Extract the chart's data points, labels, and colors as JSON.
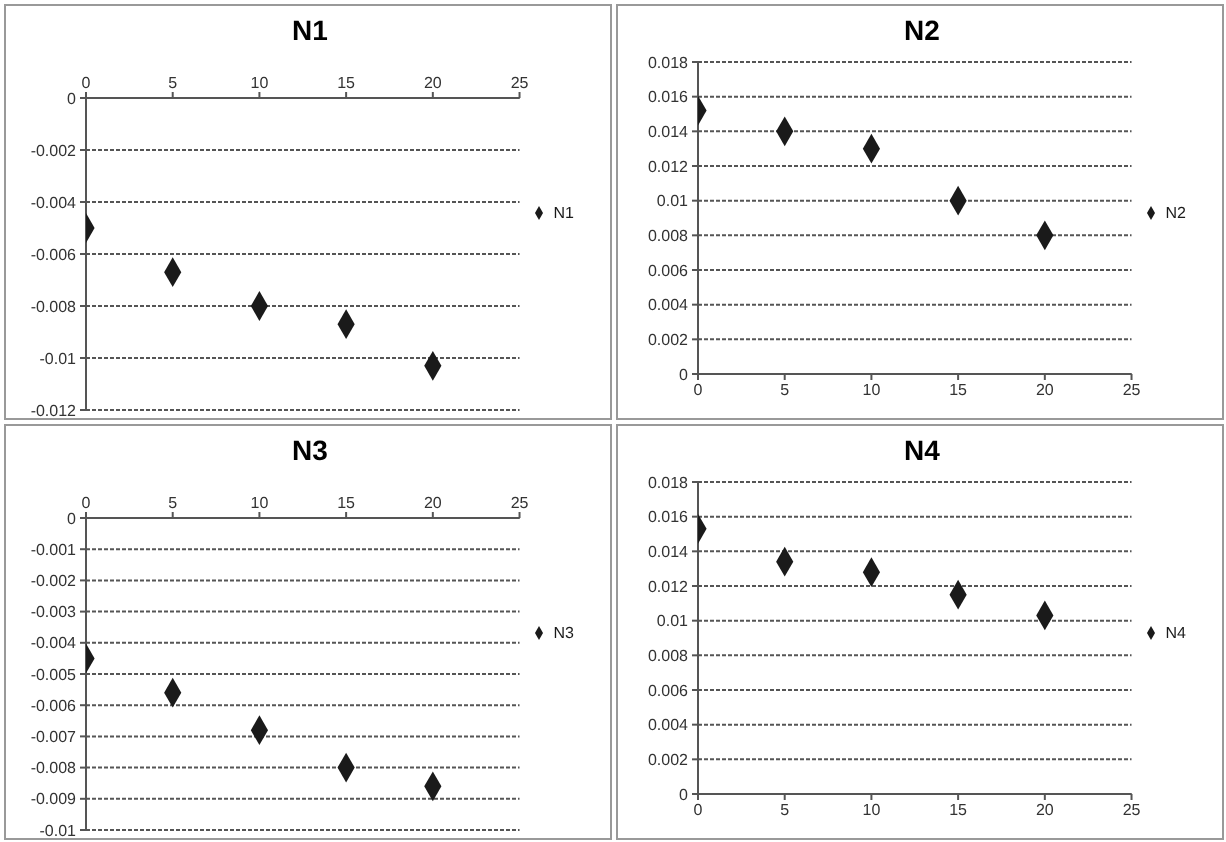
{
  "chart_data": [
    {
      "type": "scatter",
      "title": "N1",
      "x": [
        0,
        5,
        10,
        15,
        20
      ],
      "series": [
        {
          "name": "N1",
          "color": "#1a1a1a",
          "values": [
            -0.005,
            -0.0067,
            -0.008,
            -0.0087,
            -0.0103
          ]
        }
      ],
      "xlim": [
        0,
        25
      ],
      "xticks": [
        0,
        5,
        10,
        15,
        20,
        25
      ],
      "ylim": [
        -0.012,
        0
      ],
      "yticks": [
        -0.012,
        -0.01,
        -0.008,
        -0.006,
        -0.004,
        -0.002,
        0
      ],
      "grid": "y",
      "legend": "right",
      "marker": "diamond"
    },
    {
      "type": "scatter",
      "title": "N2",
      "x": [
        0,
        5,
        10,
        15,
        20
      ],
      "series": [
        {
          "name": "N2",
          "color": "#1a1a1a",
          "values": [
            0.0152,
            0.014,
            0.013,
            0.01,
            0.008
          ]
        }
      ],
      "xlim": [
        0,
        25
      ],
      "xticks": [
        0,
        5,
        10,
        15,
        20,
        25
      ],
      "ylim": [
        0,
        0.018
      ],
      "yticks": [
        0,
        0.002,
        0.004,
        0.006,
        0.008,
        0.01,
        0.012,
        0.014,
        0.016,
        0.018
      ],
      "grid": "y",
      "legend": "right",
      "marker": "diamond"
    },
    {
      "type": "scatter",
      "title": "N3",
      "x": [
        0,
        5,
        10,
        15,
        20
      ],
      "series": [
        {
          "name": "N3",
          "color": "#1a1a1a",
          "values": [
            -0.0045,
            -0.0056,
            -0.0068,
            -0.008,
            -0.0086
          ]
        }
      ],
      "xlim": [
        0,
        25
      ],
      "xticks": [
        0,
        5,
        10,
        15,
        20,
        25
      ],
      "ylim": [
        -0.01,
        0
      ],
      "yticks": [
        -0.01,
        -0.009,
        -0.008,
        -0.007,
        -0.006,
        -0.005,
        -0.004,
        -0.003,
        -0.002,
        -0.001,
        0
      ],
      "grid": "y",
      "legend": "right",
      "marker": "diamond"
    },
    {
      "type": "scatter",
      "title": "N4",
      "x": [
        0,
        5,
        10,
        15,
        20
      ],
      "series": [
        {
          "name": "N4",
          "color": "#1a1a1a",
          "values": [
            0.0153,
            0.0134,
            0.0128,
            0.0115,
            0.0103
          ]
        }
      ],
      "xlim": [
        0,
        25
      ],
      "xticks": [
        0,
        5,
        10,
        15,
        20,
        25
      ],
      "ylim": [
        0,
        0.018
      ],
      "yticks": [
        0,
        0.002,
        0.004,
        0.006,
        0.008,
        0.01,
        0.012,
        0.014,
        0.016,
        0.018
      ],
      "grid": "y",
      "legend": "right",
      "marker": "diamond"
    }
  ]
}
